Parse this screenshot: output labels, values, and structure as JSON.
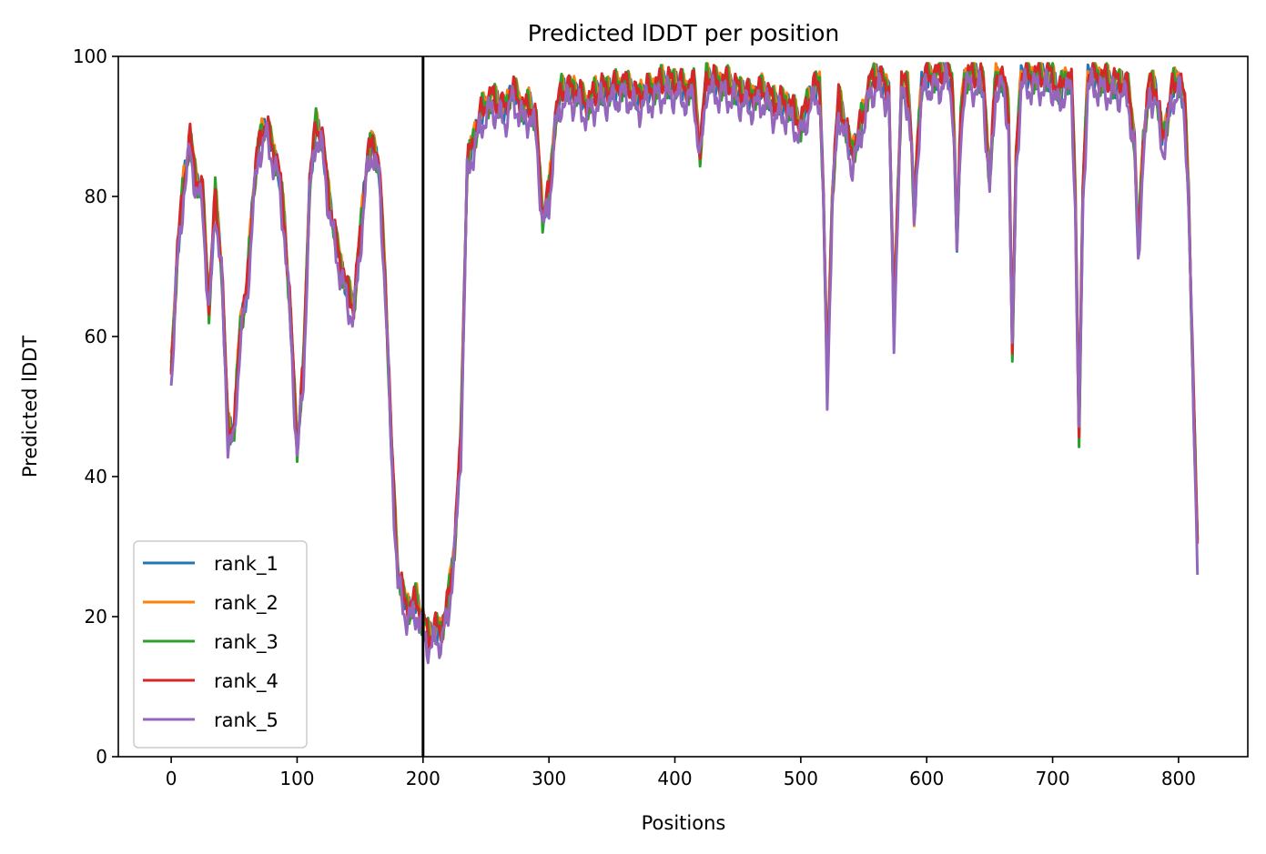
{
  "chart_data": {
    "type": "line",
    "title": "Predicted lDDT per position",
    "xlabel": "Positions",
    "ylabel": "Predicted lDDT",
    "xlim": [
      -42,
      855
    ],
    "ylim": [
      0,
      100
    ],
    "xticks": [
      0,
      100,
      200,
      300,
      400,
      500,
      600,
      700,
      800
    ],
    "yticks": [
      0,
      20,
      40,
      60,
      80,
      100
    ],
    "grid": false,
    "legend_position": "lower-left",
    "vline_x": 200,
    "vline_color": "#000000",
    "anchors": [
      [
        0,
        55
      ],
      [
        5,
        72
      ],
      [
        10,
        82
      ],
      [
        15,
        88
      ],
      [
        20,
        82
      ],
      [
        25,
        80
      ],
      [
        30,
        64
      ],
      [
        35,
        80
      ],
      [
        40,
        70
      ],
      [
        45,
        47
      ],
      [
        50,
        46
      ],
      [
        55,
        62
      ],
      [
        60,
        66
      ],
      [
        65,
        80
      ],
      [
        70,
        88
      ],
      [
        75,
        90
      ],
      [
        80,
        87
      ],
      [
        85,
        84
      ],
      [
        90,
        76
      ],
      [
        95,
        62
      ],
      [
        100,
        44
      ],
      [
        105,
        55
      ],
      [
        110,
        82
      ],
      [
        115,
        90
      ],
      [
        120,
        88
      ],
      [
        125,
        80
      ],
      [
        130,
        74
      ],
      [
        135,
        70
      ],
      [
        140,
        66
      ],
      [
        145,
        64
      ],
      [
        150,
        74
      ],
      [
        155,
        84
      ],
      [
        160,
        88
      ],
      [
        165,
        84
      ],
      [
        170,
        68
      ],
      [
        175,
        44
      ],
      [
        180,
        26
      ],
      [
        185,
        22
      ],
      [
        190,
        21
      ],
      [
        195,
        22
      ],
      [
        200,
        19
      ],
      [
        205,
        17
      ],
      [
        210,
        18
      ],
      [
        215,
        18
      ],
      [
        220,
        22
      ],
      [
        225,
        30
      ],
      [
        230,
        45
      ],
      [
        235,
        84
      ],
      [
        240,
        88
      ],
      [
        245,
        91
      ],
      [
        250,
        93
      ],
      [
        255,
        94
      ],
      [
        260,
        93
      ],
      [
        265,
        92
      ],
      [
        270,
        95
      ],
      [
        275,
        94
      ],
      [
        280,
        92
      ],
      [
        285,
        93
      ],
      [
        290,
        90
      ],
      [
        295,
        77
      ],
      [
        300,
        80
      ],
      [
        305,
        91
      ],
      [
        310,
        95
      ],
      [
        320,
        95
      ],
      [
        330,
        93
      ],
      [
        340,
        95
      ],
      [
        350,
        95
      ],
      [
        360,
        96
      ],
      [
        370,
        94
      ],
      [
        380,
        95
      ],
      [
        390,
        96
      ],
      [
        400,
        96
      ],
      [
        410,
        95
      ],
      [
        415,
        96
      ],
      [
        420,
        86
      ],
      [
        425,
        97
      ],
      [
        430,
        96
      ],
      [
        440,
        96
      ],
      [
        450,
        95
      ],
      [
        460,
        94
      ],
      [
        470,
        95
      ],
      [
        480,
        93
      ],
      [
        490,
        93
      ],
      [
        500,
        90
      ],
      [
        505,
        93
      ],
      [
        510,
        95
      ],
      [
        515,
        96
      ],
      [
        518,
        80
      ],
      [
        521,
        53
      ],
      [
        525,
        80
      ],
      [
        530,
        94
      ],
      [
        535,
        90
      ],
      [
        540,
        86
      ],
      [
        545,
        88
      ],
      [
        550,
        92
      ],
      [
        555,
        96
      ],
      [
        560,
        97
      ],
      [
        565,
        96
      ],
      [
        570,
        95
      ],
      [
        572,
        78
      ],
      [
        574,
        61
      ],
      [
        577,
        80
      ],
      [
        580,
        96
      ],
      [
        585,
        95
      ],
      [
        588,
        88
      ],
      [
        590,
        77
      ],
      [
        593,
        88
      ],
      [
        596,
        96
      ],
      [
        600,
        97
      ],
      [
        610,
        97
      ],
      [
        615,
        98
      ],
      [
        620,
        96
      ],
      [
        622,
        88
      ],
      [
        624,
        73
      ],
      [
        627,
        90
      ],
      [
        630,
        97
      ],
      [
        640,
        97
      ],
      [
        645,
        96
      ],
      [
        650,
        82
      ],
      [
        655,
        97
      ],
      [
        660,
        97
      ],
      [
        665,
        92
      ],
      [
        668,
        58
      ],
      [
        671,
        85
      ],
      [
        675,
        97
      ],
      [
        680,
        97
      ],
      [
        690,
        97
      ],
      [
        700,
        97
      ],
      [
        705,
        94
      ],
      [
        710,
        97
      ],
      [
        715,
        96
      ],
      [
        718,
        80
      ],
      [
        721,
        46
      ],
      [
        724,
        80
      ],
      [
        728,
        97
      ],
      [
        735,
        97
      ],
      [
        745,
        96
      ],
      [
        755,
        96
      ],
      [
        760,
        95
      ],
      [
        765,
        88
      ],
      [
        768,
        72
      ],
      [
        772,
        88
      ],
      [
        777,
        96
      ],
      [
        782,
        95
      ],
      [
        787,
        88
      ],
      [
        790,
        90
      ],
      [
        795,
        95
      ],
      [
        800,
        97
      ],
      [
        805,
        93
      ],
      [
        808,
        80
      ],
      [
        812,
        50
      ],
      [
        815,
        30
      ]
    ],
    "series": [
      {
        "name": "rank_1",
        "color": "#1f77b4",
        "offset": 0.0,
        "amp": 0.9,
        "phase": 0.0
      },
      {
        "name": "rank_2",
        "color": "#ff7f0e",
        "offset": 0.6,
        "amp": 1.0,
        "phase": 1.3
      },
      {
        "name": "rank_3",
        "color": "#2ca02c",
        "offset": 0.3,
        "amp": 1.2,
        "phase": 2.1
      },
      {
        "name": "rank_4",
        "color": "#d62728",
        "offset": 0.4,
        "amp": 1.1,
        "phase": 3.2
      },
      {
        "name": "rank_5",
        "color": "#9467bd",
        "offset": -1.5,
        "amp": 1.3,
        "phase": 4.4
      }
    ]
  }
}
